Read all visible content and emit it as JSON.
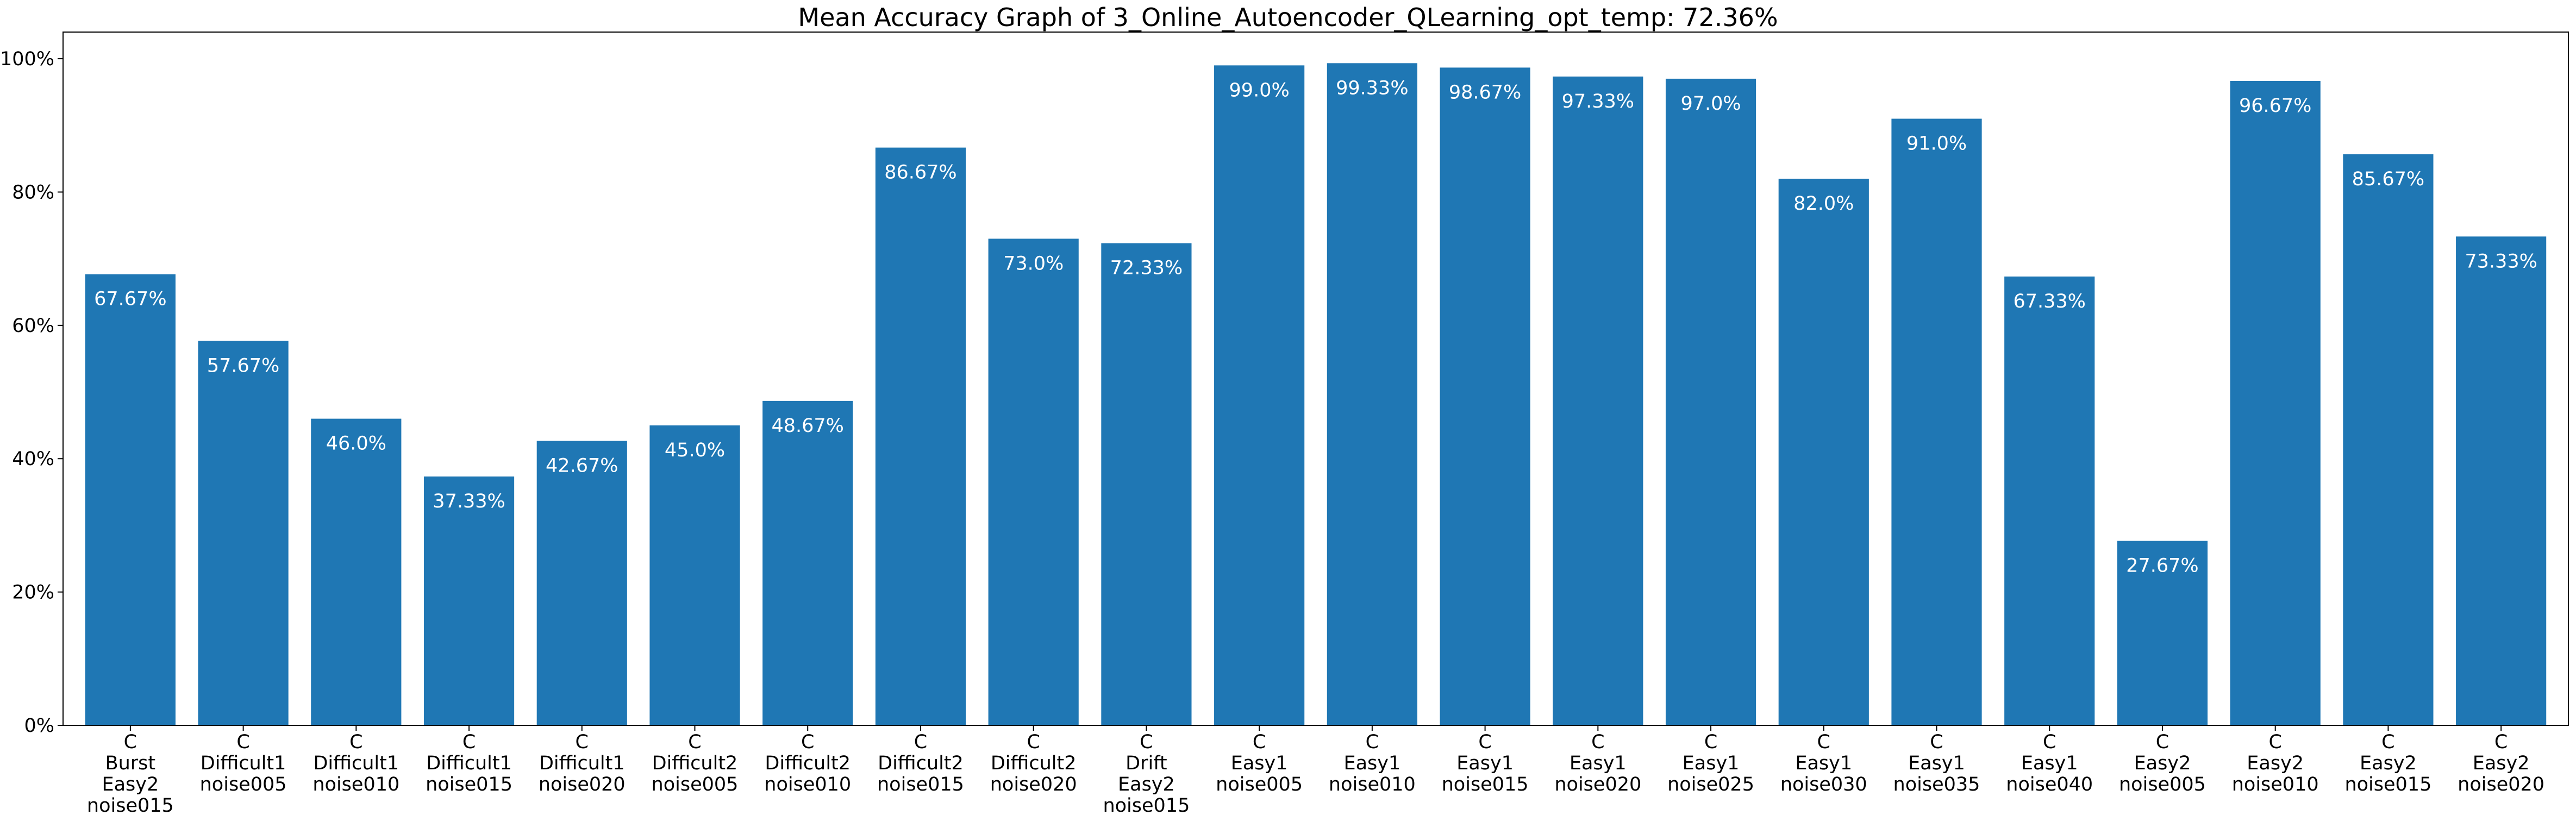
{
  "chart_data": {
    "type": "bar",
    "title": "Mean Accuracy Graph of 3_Online_Autoencoder_QLearning_opt_temp: 72.36%",
    "xlabel": "",
    "ylabel": "",
    "ylim": [
      0,
      104
    ],
    "grid": false,
    "bar_color": "#1f77b4",
    "y_ticks": [
      {
        "value": 0,
        "label": "0%"
      },
      {
        "value": 20,
        "label": "20%"
      },
      {
        "value": 40,
        "label": "40%"
      },
      {
        "value": 60,
        "label": "60%"
      },
      {
        "value": 80,
        "label": "80%"
      },
      {
        "value": 100,
        "label": "100%"
      }
    ],
    "categories": [
      [
        "C",
        "Burst",
        "Easy2",
        "noise015"
      ],
      [
        "C",
        "Difficult1",
        "noise005"
      ],
      [
        "C",
        "Difficult1",
        "noise010"
      ],
      [
        "C",
        "Difficult1",
        "noise015"
      ],
      [
        "C",
        "Difficult1",
        "noise020"
      ],
      [
        "C",
        "Difficult2",
        "noise005"
      ],
      [
        "C",
        "Difficult2",
        "noise010"
      ],
      [
        "C",
        "Difficult2",
        "noise015"
      ],
      [
        "C",
        "Difficult2",
        "noise020"
      ],
      [
        "C",
        "Drift",
        "Easy2",
        "noise015"
      ],
      [
        "C",
        "Easy1",
        "noise005"
      ],
      [
        "C",
        "Easy1",
        "noise010"
      ],
      [
        "C",
        "Easy1",
        "noise015"
      ],
      [
        "C",
        "Easy1",
        "noise020"
      ],
      [
        "C",
        "Easy1",
        "noise025"
      ],
      [
        "C",
        "Easy1",
        "noise030"
      ],
      [
        "C",
        "Easy1",
        "noise035"
      ],
      [
        "C",
        "Easy1",
        "noise040"
      ],
      [
        "C",
        "Easy2",
        "noise005"
      ],
      [
        "C",
        "Easy2",
        "noise010"
      ],
      [
        "C",
        "Easy2",
        "noise015"
      ],
      [
        "C",
        "Easy2",
        "noise020"
      ]
    ],
    "values": [
      67.67,
      57.67,
      46.0,
      37.33,
      42.67,
      45.0,
      48.67,
      86.67,
      73.0,
      72.33,
      99.0,
      99.33,
      98.67,
      97.33,
      97.0,
      82.0,
      91.0,
      67.33,
      27.67,
      96.67,
      85.67,
      73.33
    ],
    "data_labels": [
      "67.67%",
      "57.67%",
      "46.0%",
      "37.33%",
      "42.67%",
      "45.0%",
      "48.67%",
      "86.67%",
      "73.0%",
      "72.33%",
      "99.0%",
      "99.33%",
      "98.67%",
      "97.33%",
      "97.0%",
      "82.0%",
      "91.0%",
      "67.33%",
      "27.67%",
      "96.67%",
      "85.67%",
      "73.33%"
    ]
  }
}
